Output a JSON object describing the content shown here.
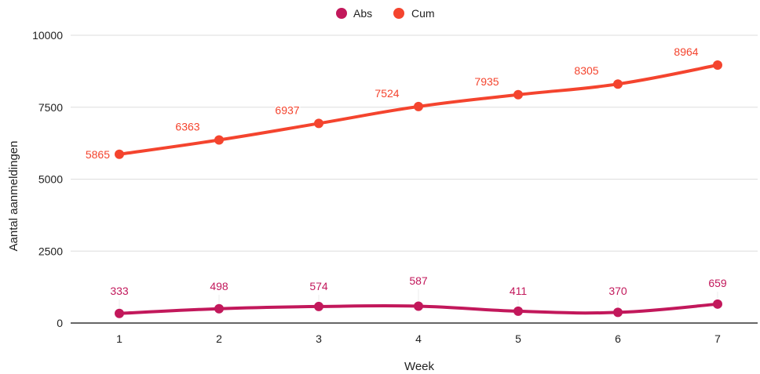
{
  "chart_data": {
    "type": "line",
    "x": [
      1,
      2,
      3,
      4,
      5,
      6,
      7
    ],
    "xlabel": "Week",
    "ylabel": "Aantal aanmeldingen",
    "ylim": [
      0,
      10000
    ],
    "yticks": [
      0,
      2500,
      5000,
      7500,
      10000
    ],
    "grid": true,
    "legend": "top-center",
    "series": [
      {
        "name": "Abs",
        "color": "#c2185b",
        "values": [
          333,
          498,
          574,
          587,
          411,
          370,
          659
        ]
      },
      {
        "name": "Cum",
        "color": "#f4442e",
        "values": [
          5865,
          6363,
          6937,
          7524,
          7935,
          8305,
          8964
        ]
      }
    ]
  }
}
